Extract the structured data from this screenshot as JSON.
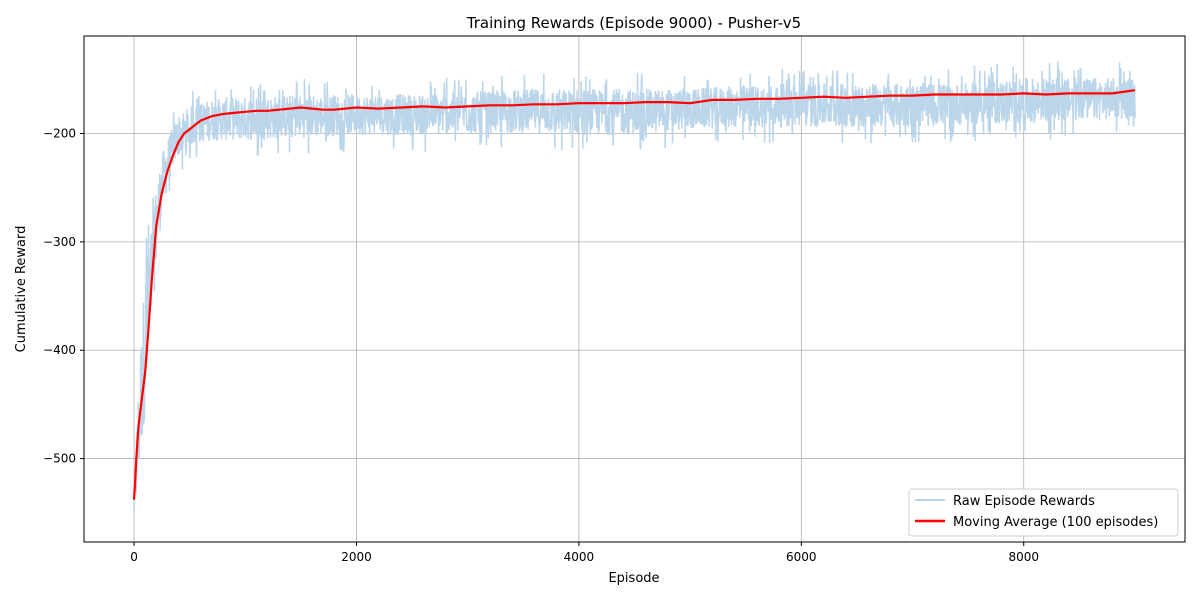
{
  "chart_data": {
    "type": "line",
    "title": "Training Rewards (Episode 9000) - Pusher-v5",
    "xlabel": "Episode",
    "ylabel": "Cumulative Reward",
    "xlim": [
      -450,
      9450
    ],
    "ylim": [
      -577,
      -110
    ],
    "xticks": [
      0,
      2000,
      4000,
      6000,
      8000
    ],
    "xtick_labels": [
      "0",
      "2000",
      "4000",
      "6000",
      "8000"
    ],
    "yticks": [
      -500,
      -400,
      -300,
      -200
    ],
    "ytick_labels": [
      "−500",
      "−400",
      "−300",
      "−200"
    ],
    "grid": true,
    "legend_position": "lower-right",
    "series": [
      {
        "name": "Raw Episode Rewards",
        "color": "#b7d3e9",
        "style": "noisy-band",
        "x": [
          0,
          30,
          60,
          100,
          150,
          200,
          250,
          300,
          350,
          400,
          500,
          600,
          700,
          800,
          1000,
          1500,
          2000,
          2500,
          3000,
          3500,
          4000,
          4500,
          5000,
          5500,
          6000,
          6500,
          7000,
          7500,
          8000,
          8500,
          9000
        ],
        "upper": [
          -530,
          -450,
          -380,
          -310,
          -280,
          -240,
          -215,
          -200,
          -190,
          -178,
          -172,
          -168,
          -165,
          -163,
          -162,
          -160,
          -160,
          -160,
          -158,
          -155,
          -155,
          -155,
          -155,
          -152,
          -150,
          -150,
          -150,
          -150,
          -145,
          -145,
          -145
        ],
        "lower": [
          -560,
          -540,
          -510,
          -470,
          -400,
          -330,
          -280,
          -255,
          -235,
          -225,
          -215,
          -212,
          -210,
          -210,
          -210,
          -208,
          -205,
          -205,
          -205,
          -203,
          -205,
          -205,
          -200,
          -198,
          -198,
          -198,
          -198,
          -195,
          -195,
          -192,
          -190
        ]
      },
      {
        "name": "Moving Average (100 episodes)",
        "color": "#ff0000",
        "x": [
          0,
          10,
          20,
          40,
          70,
          100,
          130,
          160,
          200,
          250,
          300,
          350,
          400,
          450,
          500,
          600,
          700,
          800,
          900,
          1000,
          1100,
          1200,
          1400,
          1500,
          1600,
          1700,
          1800,
          2000,
          2200,
          2400,
          2600,
          2800,
          3000,
          3200,
          3400,
          3600,
          3800,
          4000,
          4200,
          4400,
          4600,
          4800,
          5000,
          5200,
          5400,
          5600,
          5800,
          6000,
          6200,
          6400,
          6600,
          6800,
          7000,
          7200,
          7400,
          7600,
          7800,
          8000,
          8200,
          8400,
          8600,
          8800,
          9000
        ],
        "values": [
          -538,
          -520,
          -500,
          -470,
          -445,
          -420,
          -380,
          -335,
          -285,
          -255,
          -235,
          -220,
          -208,
          -200,
          -196,
          -188,
          -184,
          -182,
          -181,
          -180,
          -179,
          -179,
          -177,
          -176,
          -177,
          -178,
          -178,
          -176,
          -177,
          -176,
          -175,
          -176,
          -175,
          -174,
          -174,
          -173,
          -173,
          -172,
          -172,
          -172,
          -171,
          -171,
          -172,
          -169,
          -169,
          -168,
          -168,
          -167,
          -166,
          -167,
          -166,
          -165,
          -165,
          -164,
          -164,
          -164,
          -164,
          -163,
          -164,
          -163,
          -163,
          -163,
          -160
        ]
      }
    ]
  }
}
